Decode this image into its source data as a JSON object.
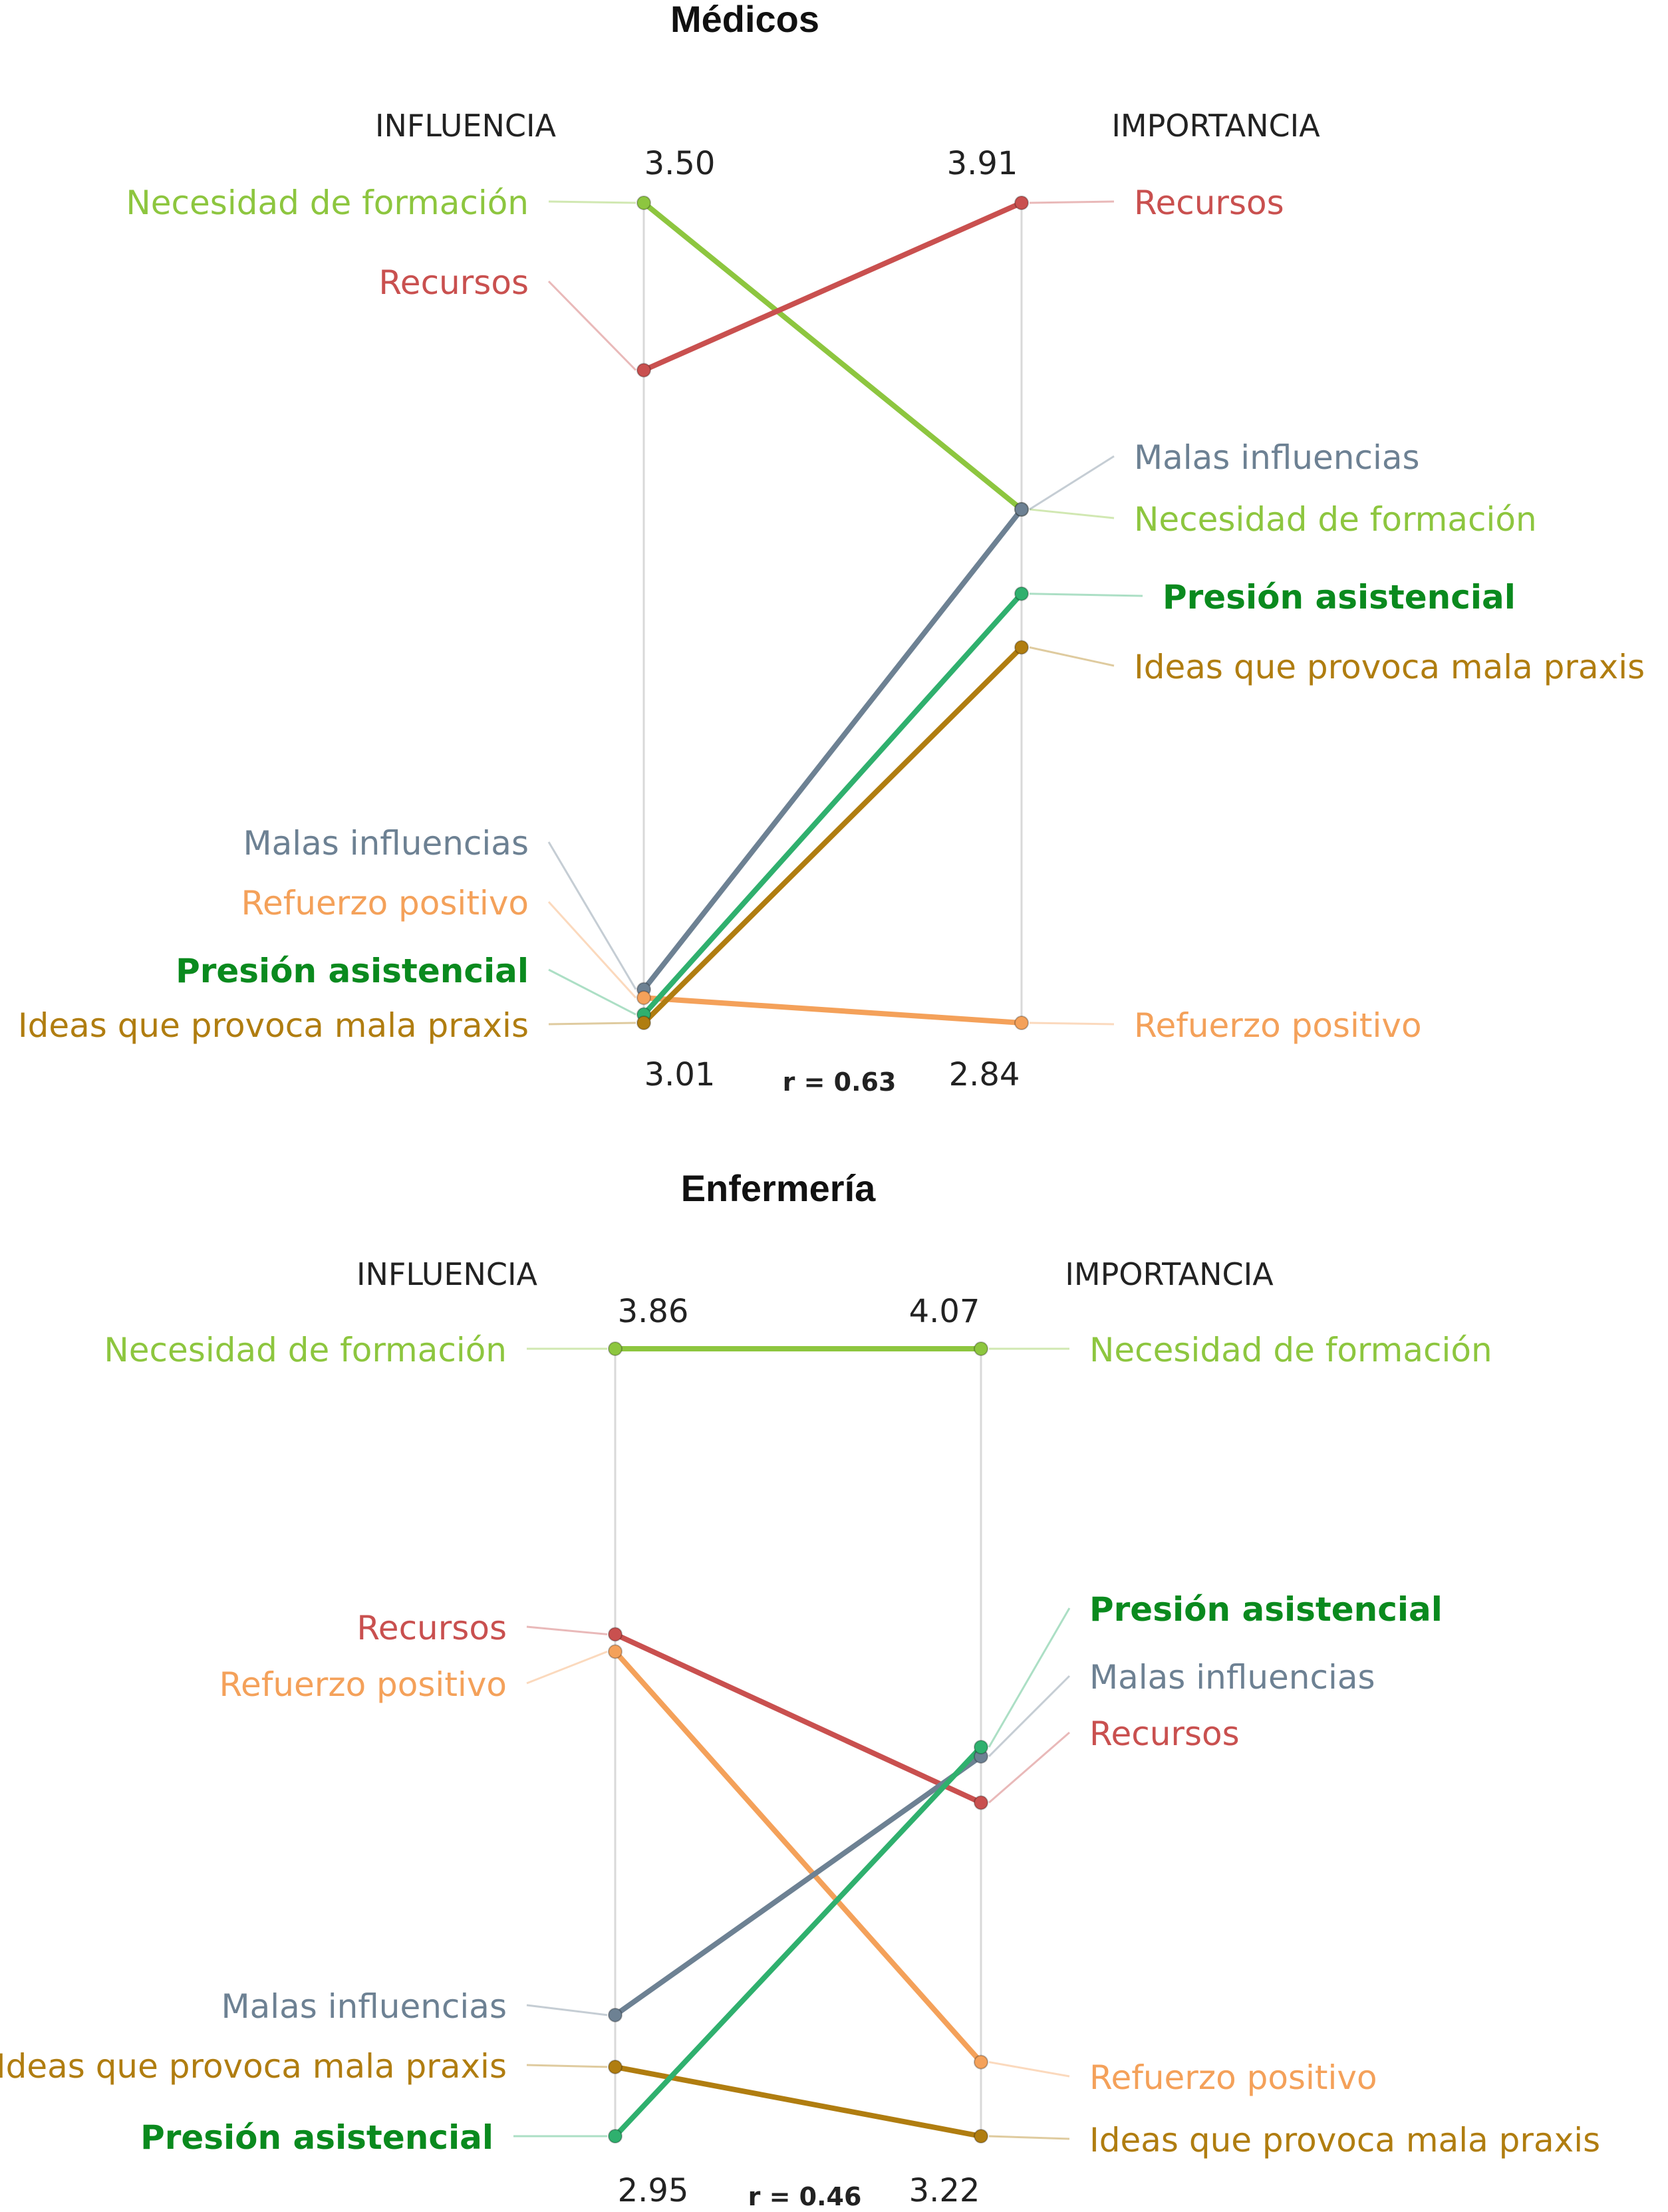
{
  "chart_data": [
    {
      "type": "slope",
      "title": "Médicos",
      "left_label": "INFLUENCIA",
      "right_label": "IMPORTANCIA",
      "left_max_label": "3.50",
      "left_min_label": "3.01",
      "right_max_label": "3.91",
      "right_min_label": "2.84",
      "correlation_label": "r = 0.63",
      "series": [
        {
          "name": "Necesidad de formación",
          "influencia": 3.5,
          "importancia": 3.51,
          "color": "#8dc63f",
          "bold": false
        },
        {
          "name": "Recursos",
          "influencia": 3.4,
          "importancia": 3.91,
          "color": "#c9504f",
          "bold": false
        },
        {
          "name": "Malas influencias",
          "influencia": 3.03,
          "importancia": 3.51,
          "color": "#6d8193",
          "bold": false
        },
        {
          "name": "Refuerzo positivo",
          "influencia": 3.025,
          "importancia": 2.84,
          "color": "#f4a15a",
          "bold": false
        },
        {
          "name": "Presión asistencial",
          "influencia": 3.015,
          "importancia": 3.4,
          "color": "#2fb06e",
          "bold": true,
          "label_color": "#0a8a1e"
        },
        {
          "name": "Ideas que provoca mala praxis",
          "influencia": 3.01,
          "importancia": 3.33,
          "color": "#b07d10",
          "bold": false
        }
      ]
    },
    {
      "type": "slope",
      "title": "Enfermería",
      "left_label": "INFLUENCIA",
      "right_label": "IMPORTANCIA",
      "left_max_label": "3.86",
      "left_min_label": "2.95",
      "right_max_label": "4.07",
      "right_min_label": "3.22",
      "correlation_label": "r = 0.46",
      "series": [
        {
          "name": "Necesidad de formación",
          "influencia": 3.86,
          "importancia": 4.07,
          "color": "#8dc63f",
          "bold": false
        },
        {
          "name": "Recursos",
          "influencia": 3.53,
          "importancia": 3.58,
          "color": "#c9504f",
          "bold": false
        },
        {
          "name": "Refuerzo positivo",
          "influencia": 3.51,
          "importancia": 3.3,
          "color": "#f4a15a",
          "bold": false
        },
        {
          "name": "Malas influencias",
          "influencia": 3.09,
          "importancia": 3.63,
          "color": "#6d8193",
          "bold": false
        },
        {
          "name": "Ideas que provoca mala praxis",
          "influencia": 3.03,
          "importancia": 3.22,
          "color": "#b07d10",
          "bold": false
        },
        {
          "name": "Presión asistencial",
          "influencia": 2.95,
          "importancia": 3.64,
          "color": "#2fb06e",
          "bold": true,
          "label_color": "#0a8a1e"
        }
      ]
    }
  ]
}
